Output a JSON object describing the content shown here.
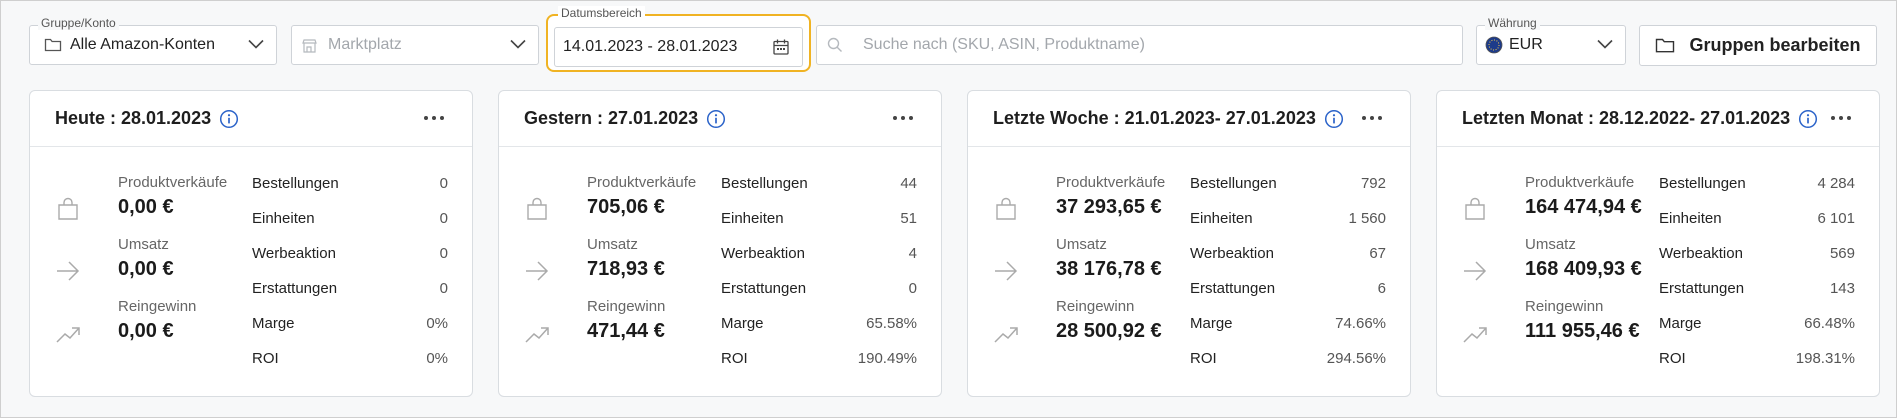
{
  "toolbar": {
    "gruppe_label": "Gruppe/Konto",
    "gruppe_value": "Alle Amazon-Konten",
    "marktplatz_placeholder": "Marktplatz",
    "datum_label": "Datumsbereich",
    "datum_value": "14.01.2023 - 28.01.2023",
    "search_placeholder": "Suche nach (SKU, ASIN, Produktname)",
    "waehrung_label": "Währung",
    "waehrung_value": "EUR",
    "gruppen_button": "Gruppen bearbeiten"
  },
  "colors": {
    "accent": "#f0b323",
    "info": "#2b63c9",
    "flag": "#1d3b8a"
  },
  "cards": [
    {
      "title": "Heute : 28.01.2023",
      "metrics": [
        {
          "label": "Produktverkäufe",
          "value": "0,00 €",
          "icon": "shopping-bag-icon"
        },
        {
          "label": "Umsatz",
          "value": "0,00 €",
          "icon": "arrow-right-icon"
        },
        {
          "label": "Reingewinn",
          "value": "0,00 €",
          "icon": "trend-up-icon"
        }
      ],
      "stats": [
        {
          "key": "Bestellungen",
          "value": "0"
        },
        {
          "key": "Einheiten",
          "value": "0"
        },
        {
          "key": "Werbeaktion",
          "value": "0"
        },
        {
          "key": "Erstattungen",
          "value": "0"
        },
        {
          "key": "Marge",
          "value": "0%"
        },
        {
          "key": "ROI",
          "value": "0%"
        }
      ]
    },
    {
      "title": "Gestern : 27.01.2023",
      "metrics": [
        {
          "label": "Produktverkäufe",
          "value": "705,06 €",
          "icon": "shopping-bag-icon"
        },
        {
          "label": "Umsatz",
          "value": "718,93 €",
          "icon": "arrow-right-icon"
        },
        {
          "label": "Reingewinn",
          "value": "471,44 €",
          "icon": "trend-up-icon"
        }
      ],
      "stats": [
        {
          "key": "Bestellungen",
          "value": "44"
        },
        {
          "key": "Einheiten",
          "value": "51"
        },
        {
          "key": "Werbeaktion",
          "value": "4"
        },
        {
          "key": "Erstattungen",
          "value": "0"
        },
        {
          "key": "Marge",
          "value": "65.58%"
        },
        {
          "key": "ROI",
          "value": "190.49%"
        }
      ]
    },
    {
      "title": "Letzte Woche : 21.01.2023- 27.01.2023",
      "metrics": [
        {
          "label": "Produktverkäufe",
          "value": "37 293,65 €",
          "icon": "shopping-bag-icon"
        },
        {
          "label": "Umsatz",
          "value": "38 176,78 €",
          "icon": "arrow-right-icon"
        },
        {
          "label": "Reingewinn",
          "value": "28 500,92 €",
          "icon": "trend-up-icon"
        }
      ],
      "stats": [
        {
          "key": "Bestellungen",
          "value": "792"
        },
        {
          "key": "Einheiten",
          "value": "1 560"
        },
        {
          "key": "Werbeaktion",
          "value": "67"
        },
        {
          "key": "Erstattungen",
          "value": "6"
        },
        {
          "key": "Marge",
          "value": "74.66%"
        },
        {
          "key": "ROI",
          "value": "294.56%"
        }
      ]
    },
    {
      "title": "Letzten Monat : 28.12.2022- 27.01.2023",
      "metrics": [
        {
          "label": "Produktverkäufe",
          "value": "164 474,94 €",
          "icon": "shopping-bag-icon"
        },
        {
          "label": "Umsatz",
          "value": "168 409,93 €",
          "icon": "arrow-right-icon"
        },
        {
          "label": "Reingewinn",
          "value": "111 955,46 €",
          "icon": "trend-up-icon"
        }
      ],
      "stats": [
        {
          "key": "Bestellungen",
          "value": "4 284"
        },
        {
          "key": "Einheiten",
          "value": "6 101"
        },
        {
          "key": "Werbeaktion",
          "value": "569"
        },
        {
          "key": "Erstattungen",
          "value": "143"
        },
        {
          "key": "Marge",
          "value": "66.48%"
        },
        {
          "key": "ROI",
          "value": "198.31%"
        }
      ]
    }
  ]
}
